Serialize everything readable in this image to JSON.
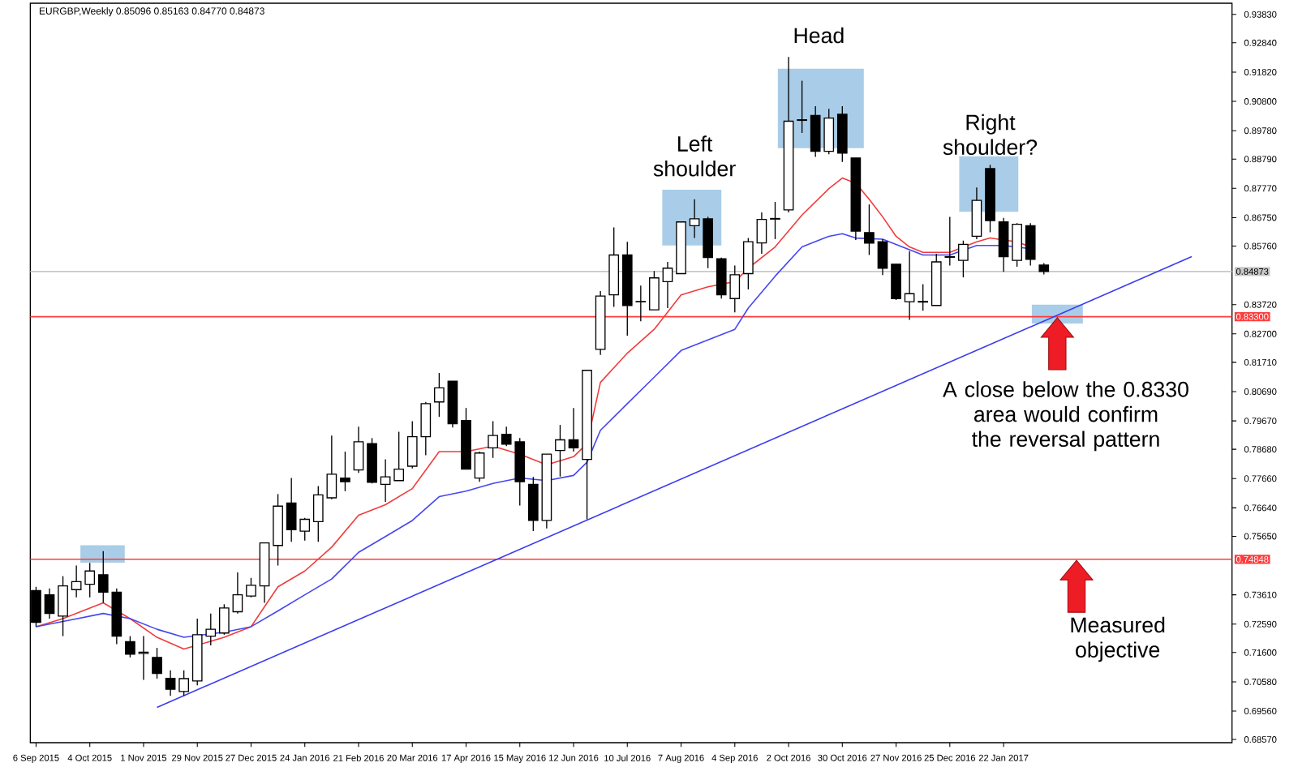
{
  "chart_data": {
    "type": "candlestick",
    "title": "EURGBP,Weekly  0.85096 0.85163 0.84770 0.84873",
    "color": "#000000",
    "x": [
      "2015-09-06",
      "2015-09-13",
      "2015-09-20",
      "2015-09-27",
      "2015-10-04",
      "2015-10-11",
      "2015-10-18",
      "2015-10-25",
      "2015-11-01",
      "2015-11-08",
      "2015-11-15",
      "2015-11-22",
      "2015-11-29",
      "2015-12-06",
      "2015-12-13",
      "2015-12-20",
      "2015-12-27",
      "2016-01-03",
      "2016-01-10",
      "2016-01-17",
      "2016-01-24",
      "2016-01-31",
      "2016-02-07",
      "2016-02-14",
      "2016-02-21",
      "2016-02-28",
      "2016-03-06",
      "2016-03-13",
      "2016-03-20",
      "2016-03-27",
      "2016-04-03",
      "2016-04-10",
      "2016-04-17",
      "2016-04-24",
      "2016-05-01",
      "2016-05-08",
      "2016-05-15",
      "2016-05-22",
      "2016-05-29",
      "2016-06-05",
      "2016-06-12",
      "2016-06-19",
      "2016-06-26",
      "2016-07-03",
      "2016-07-10",
      "2016-07-17",
      "2016-07-24",
      "2016-07-31",
      "2016-08-07",
      "2016-08-14",
      "2016-08-21",
      "2016-08-28",
      "2016-09-04",
      "2016-09-11",
      "2016-09-18",
      "2016-09-25",
      "2016-10-02",
      "2016-10-09",
      "2016-10-16",
      "2016-10-23",
      "2016-10-30",
      "2016-11-06",
      "2016-11-13",
      "2016-11-20",
      "2016-11-27",
      "2016-12-04",
      "2016-12-11",
      "2016-12-18",
      "2016-12-25",
      "2017-01-01",
      "2017-01-08",
      "2017-01-15",
      "2017-01-22",
      "2017-01-29",
      "2017-02-05",
      "2017-02-12"
    ],
    "ohlc": [
      [
        0.7376,
        0.7389,
        0.725,
        0.7265
      ],
      [
        0.7361,
        0.7383,
        0.7278,
        0.7296
      ],
      [
        0.7287,
        0.7426,
        0.7217,
        0.7392
      ],
      [
        0.7379,
        0.7463,
        0.7352,
        0.7407
      ],
      [
        0.7398,
        0.7472,
        0.7352,
        0.7444
      ],
      [
        0.7431,
        0.7513,
        0.7333,
        0.737
      ],
      [
        0.737,
        0.7383,
        0.7189,
        0.7217
      ],
      [
        0.7198,
        0.7217,
        0.7143,
        0.7154
      ],
      [
        0.7157,
        0.7217,
        0.7065,
        0.7161
      ],
      [
        0.7143,
        0.7176,
        0.7069,
        0.7087
      ],
      [
        0.707,
        0.7098,
        0.7009,
        0.7032
      ],
      [
        0.7024,
        0.7098,
        0.7009,
        0.7069
      ],
      [
        0.7061,
        0.7278,
        0.7046,
        0.7222
      ],
      [
        0.7217,
        0.7296,
        0.7185,
        0.7241
      ],
      [
        0.7228,
        0.7328,
        0.7222,
        0.7315
      ],
      [
        0.7302,
        0.7439,
        0.7296,
        0.7361
      ],
      [
        0.7357,
        0.742,
        0.7352,
        0.7394
      ],
      [
        0.7392,
        0.7542,
        0.7333,
        0.7542
      ],
      [
        0.7533,
        0.7712,
        0.7463,
        0.767
      ],
      [
        0.7681,
        0.7768,
        0.7546,
        0.7588
      ],
      [
        0.7583,
        0.7629,
        0.755,
        0.7624
      ],
      [
        0.7616,
        0.774,
        0.7546,
        0.7709
      ],
      [
        0.7699,
        0.7916,
        0.7694,
        0.7781
      ],
      [
        0.7768,
        0.786,
        0.7722,
        0.7755
      ],
      [
        0.7796,
        0.7947,
        0.7786,
        0.7894
      ],
      [
        0.7888,
        0.7907,
        0.7749,
        0.7753
      ],
      [
        0.7746,
        0.7833,
        0.7685,
        0.7772
      ],
      [
        0.7759,
        0.7929,
        0.7759,
        0.7799
      ],
      [
        0.7809,
        0.7966,
        0.7801,
        0.7912
      ],
      [
        0.7912,
        0.8033,
        0.7847,
        0.8027
      ],
      [
        0.8033,
        0.8134,
        0.7981,
        0.8082
      ],
      [
        0.8105,
        0.8105,
        0.7944,
        0.7957
      ],
      [
        0.7968,
        0.8012,
        0.7799,
        0.7799
      ],
      [
        0.7768,
        0.786,
        0.7755,
        0.7855
      ],
      [
        0.7873,
        0.7966,
        0.7838,
        0.7916
      ],
      [
        0.792,
        0.7947,
        0.7879,
        0.7886
      ],
      [
        0.7894,
        0.7907,
        0.7672,
        0.7755
      ],
      [
        0.7746,
        0.7772,
        0.7583,
        0.762
      ],
      [
        0.762,
        0.7851,
        0.7592,
        0.7851
      ],
      [
        0.7864,
        0.7953,
        0.7773,
        0.7901
      ],
      [
        0.7901,
        0.8012,
        0.786,
        0.7873
      ],
      [
        0.7833,
        0.8143,
        0.7624,
        0.8143
      ],
      [
        0.8216,
        0.8419,
        0.8197,
        0.8402
      ],
      [
        0.8406,
        0.8641,
        0.8364,
        0.8545
      ],
      [
        0.8545,
        0.8591,
        0.8264,
        0.8369
      ],
      [
        0.8382,
        0.8438,
        0.8314,
        0.8383
      ],
      [
        0.8354,
        0.8489,
        0.8354,
        0.8465
      ],
      [
        0.8452,
        0.8521,
        0.836,
        0.8499
      ],
      [
        0.848,
        0.866,
        0.848,
        0.866
      ],
      [
        0.8647,
        0.8739,
        0.8604,
        0.8671
      ],
      [
        0.8671,
        0.8678,
        0.8499,
        0.8536
      ],
      [
        0.8532,
        0.8536,
        0.8393,
        0.8406
      ],
      [
        0.8393,
        0.8508,
        0.8345,
        0.8476
      ],
      [
        0.848,
        0.8604,
        0.8425,
        0.8591
      ],
      [
        0.8587,
        0.8693,
        0.8549,
        0.8669
      ],
      [
        0.867,
        0.873,
        0.86,
        0.8672
      ],
      [
        0.8702,
        0.9235,
        0.8693,
        0.9011
      ],
      [
        0.9014,
        0.9152,
        0.897,
        0.9016
      ],
      [
        0.9031,
        0.9063,
        0.8887,
        0.8906
      ],
      [
        0.8906,
        0.9054,
        0.8896,
        0.9022
      ],
      [
        0.9035,
        0.9063,
        0.8869,
        0.89
      ],
      [
        0.8883,
        0.8883,
        0.8597,
        0.8628
      ],
      [
        0.8623,
        0.8721,
        0.8545,
        0.8586
      ],
      [
        0.8591,
        0.86,
        0.8475,
        0.8499
      ],
      [
        0.8513,
        0.8513,
        0.8388,
        0.8393
      ],
      [
        0.8382,
        0.8558,
        0.8319,
        0.841
      ],
      [
        0.8381,
        0.8443,
        0.8351,
        0.8383
      ],
      [
        0.8369,
        0.8549,
        0.8369,
        0.8521
      ],
      [
        0.8537,
        0.8678,
        0.8508,
        0.8539
      ],
      [
        0.8526,
        0.8595,
        0.8467,
        0.8582
      ],
      [
        0.861,
        0.878,
        0.86,
        0.8735
      ],
      [
        0.8846,
        0.8859,
        0.8624,
        0.8665
      ],
      [
        0.866,
        0.8674,
        0.8486,
        0.8539
      ],
      [
        0.8526,
        0.8656,
        0.8504,
        0.8652
      ],
      [
        0.8647,
        0.8656,
        0.8508,
        0.853
      ],
      [
        0.85096,
        0.85163,
        0.8477,
        0.84873
      ]
    ],
    "series": [
      {
        "type": "line",
        "color": "#f03c3c",
        "x": [
          "2015-09-06",
          "2015-09-20",
          "2015-10-11",
          "2015-10-25",
          "2015-11-08",
          "2015-11-22",
          "2015-12-13",
          "2015-12-27",
          "2016-01-10",
          "2016-01-24",
          "2016-02-07",
          "2016-02-21",
          "2016-03-06",
          "2016-03-20",
          "2016-04-03",
          "2016-04-17",
          "2016-05-01",
          "2016-05-15",
          "2016-05-29",
          "2016-06-12",
          "2016-06-19",
          "2016-06-26",
          "2016-07-10",
          "2016-07-24",
          "2016-08-07",
          "2016-08-21",
          "2016-09-04",
          "2016-09-11",
          "2016-09-25",
          "2016-10-09",
          "2016-10-23",
          "2016-10-30",
          "2016-11-06",
          "2016-11-13",
          "2016-11-20",
          "2016-11-27",
          "2016-12-04",
          "2016-12-11",
          "2016-12-25",
          "2017-01-08",
          "2017-01-15",
          "2017-01-22",
          "2017-01-29",
          "2017-02-05"
        ],
        "values": [
          0.725,
          0.7278,
          0.7333,
          0.7278,
          0.7213,
          0.7172,
          0.7213,
          0.725,
          0.7389,
          0.7444,
          0.7527,
          0.7638,
          0.7675,
          0.7731,
          0.786,
          0.786,
          0.7879,
          0.7851,
          0.7814,
          0.7842,
          0.7888,
          0.8101,
          0.8203,
          0.8286,
          0.8406,
          0.8434,
          0.8452,
          0.8499,
          0.8573,
          0.8684,
          0.8776,
          0.8813,
          0.8795,
          0.8739,
          0.8678,
          0.861,
          0.8573,
          0.8554,
          0.8554,
          0.8591,
          0.8604,
          0.8597,
          0.8591,
          0.8573
        ]
      },
      {
        "type": "line",
        "color": "#4646f0",
        "x": [
          "2015-09-06",
          "2015-09-20",
          "2015-10-11",
          "2015-10-25",
          "2015-11-08",
          "2015-11-22",
          "2015-12-13",
          "2015-12-27",
          "2016-01-10",
          "2016-01-24",
          "2016-02-07",
          "2016-02-21",
          "2016-03-06",
          "2016-03-20",
          "2016-04-03",
          "2016-04-17",
          "2016-05-01",
          "2016-05-15",
          "2016-05-29",
          "2016-06-12",
          "2016-06-19",
          "2016-06-26",
          "2016-07-10",
          "2016-07-24",
          "2016-08-07",
          "2016-08-21",
          "2016-09-04",
          "2016-09-11",
          "2016-09-25",
          "2016-10-09",
          "2016-10-23",
          "2016-10-30",
          "2016-11-06",
          "2016-11-20",
          "2016-12-04",
          "2016-12-11",
          "2016-12-25",
          "2017-01-08",
          "2017-01-22",
          "2017-02-05"
        ],
        "values": [
          0.725,
          0.7268,
          0.7296,
          0.7278,
          0.7241,
          0.7213,
          0.7231,
          0.725,
          0.7305,
          0.7361,
          0.7416,
          0.7509,
          0.7564,
          0.762,
          0.7703,
          0.7722,
          0.7749,
          0.7768,
          0.7759,
          0.7777,
          0.7823,
          0.7934,
          0.8027,
          0.8119,
          0.8212,
          0.8249,
          0.8286,
          0.836,
          0.8471,
          0.8573,
          0.861,
          0.8619,
          0.8604,
          0.86,
          0.8563,
          0.8545,
          0.8545,
          0.8578,
          0.8578,
          0.8567
        ]
      },
      {
        "type": "line",
        "color": "#3c3cf0",
        "x": [
          "2015-11-08",
          "2017-04-30"
        ],
        "values": [
          0.6969,
          0.8539
        ]
      }
    ],
    "xlim": [
      "2015-09-03",
      "2017-05-21"
    ],
    "xticks": [
      {
        "value": "2015-09-06",
        "label": "6 Sep 2015"
      },
      {
        "value": "2015-10-04",
        "label": "4 Oct 2015"
      },
      {
        "value": "2015-11-01",
        "label": "1 Nov 2015"
      },
      {
        "value": "2015-11-29",
        "label": "29 Nov 2015"
      },
      {
        "value": "2015-12-27",
        "label": "27 Dec 2015"
      },
      {
        "value": "2016-01-24",
        "label": "24 Jan 2016"
      },
      {
        "value": "2016-02-21",
        "label": "21 Feb 2016"
      },
      {
        "value": "2016-03-20",
        "label": "20 Mar 2016"
      },
      {
        "value": "2016-04-17",
        "label": "17 Apr 2016"
      },
      {
        "value": "2016-05-15",
        "label": "15 May 2016"
      },
      {
        "value": "2016-06-12",
        "label": "12 Jun 2016"
      },
      {
        "value": "2016-07-10",
        "label": "10 Jul 2016"
      },
      {
        "value": "2016-08-07",
        "label": "7 Aug 2016"
      },
      {
        "value": "2016-09-04",
        "label": "4 Sep 2016"
      },
      {
        "value": "2016-10-02",
        "label": "2 Oct 2016"
      },
      {
        "value": "2016-10-30",
        "label": "30 Oct 2016"
      },
      {
        "value": "2016-11-27",
        "label": "27 Nov 2016"
      },
      {
        "value": "2016-12-25",
        "label": "25 Dec 2016"
      },
      {
        "value": "2017-01-22",
        "label": "22 Jan 2017"
      }
    ],
    "ylim": [
      0.6846,
      0.9422
    ],
    "yticks": [
      {
        "value": 0.9383,
        "label": "0.93830"
      },
      {
        "value": 0.9284,
        "label": "0.92840"
      },
      {
        "value": 0.9182,
        "label": "0.91820"
      },
      {
        "value": 0.908,
        "label": "0.90800"
      },
      {
        "value": 0.8978,
        "label": "0.89780"
      },
      {
        "value": 0.8879,
        "label": "0.88790"
      },
      {
        "value": 0.8777,
        "label": "0.87770"
      },
      {
        "value": 0.8675,
        "label": "0.86750"
      },
      {
        "value": 0.8576,
        "label": "0.85760"
      },
      {
        "value": 0.8372,
        "label": "0.83720"
      },
      {
        "value": 0.827,
        "label": "0.82700"
      },
      {
        "value": 0.8171,
        "label": "0.81710"
      },
      {
        "value": 0.8069,
        "label": "0.80690"
      },
      {
        "value": 0.7967,
        "label": "0.79670"
      },
      {
        "value": 0.7868,
        "label": "0.78680"
      },
      {
        "value": 0.7766,
        "label": "0.77660"
      },
      {
        "value": 0.7664,
        "label": "0.76640"
      },
      {
        "value": 0.7565,
        "label": "0.75650"
      },
      {
        "value": 0.7361,
        "label": "0.73610"
      },
      {
        "value": 0.7259,
        "label": "0.72590"
      },
      {
        "value": 0.716,
        "label": "0.71600"
      },
      {
        "value": 0.7058,
        "label": "0.70580"
      },
      {
        "value": 0.6956,
        "label": "0.69560"
      },
      {
        "value": 0.6857,
        "label": "0.68570"
      }
    ],
    "ref_lines": [
      {
        "axis": "y",
        "value": 0.84873,
        "label": "0.84873",
        "color": "#c8c8c8"
      },
      {
        "axis": "y",
        "value": 0.833,
        "label": "0.83300",
        "color": "#ff3c3c"
      },
      {
        "axis": "y",
        "value": 0.74848,
        "label": "0.74848",
        "color": "#ff3c3c"
      }
    ],
    "annotations": [
      {
        "text": "Head",
        "x": "2016-10-02",
        "y": 0.9235
      },
      {
        "text": "Left shoulder",
        "x": "2016-08-14",
        "y": 0.8739
      },
      {
        "text": "Right shoulder?",
        "x": "2017-01-15",
        "y": 0.8859
      },
      {
        "text": "A close below the 0.8330 area would confirm the reversal pattern",
        "x": "2017-02-19",
        "y": 0.833
      },
      {
        "text": "Measured objective",
        "x": "2017-03-01",
        "y": 0.74848
      }
    ]
  }
}
